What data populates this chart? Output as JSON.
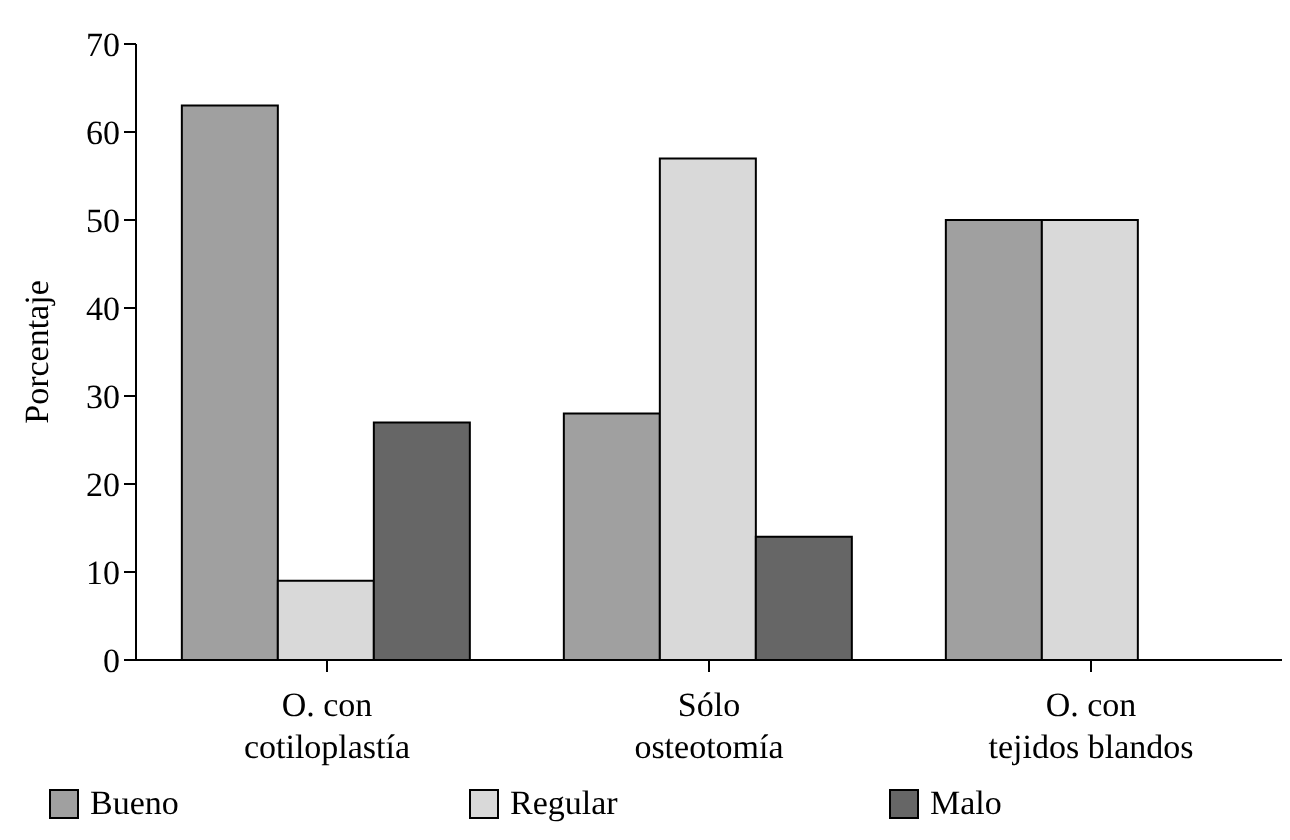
{
  "chart_data": {
    "type": "bar",
    "ylabel": "Porcentaje",
    "categories": [
      "O. con\ncotiloplastía",
      "Sólo\nosteotomía",
      "O. con\ntejidos blandos"
    ],
    "series": [
      {
        "name": "Bueno",
        "color": "#a0a0a0",
        "values": [
          63,
          28,
          50
        ]
      },
      {
        "name": "Regular",
        "color": "#d9d9d9",
        "values": [
          9,
          57,
          50
        ]
      },
      {
        "name": "Malo",
        "color": "#666666",
        "values": [
          27,
          14,
          null
        ]
      }
    ],
    "ylim": [
      0,
      70
    ],
    "yticks": [
      0,
      10,
      20,
      30,
      40,
      50,
      60,
      70
    ],
    "grid": false,
    "legend": "bottom"
  }
}
